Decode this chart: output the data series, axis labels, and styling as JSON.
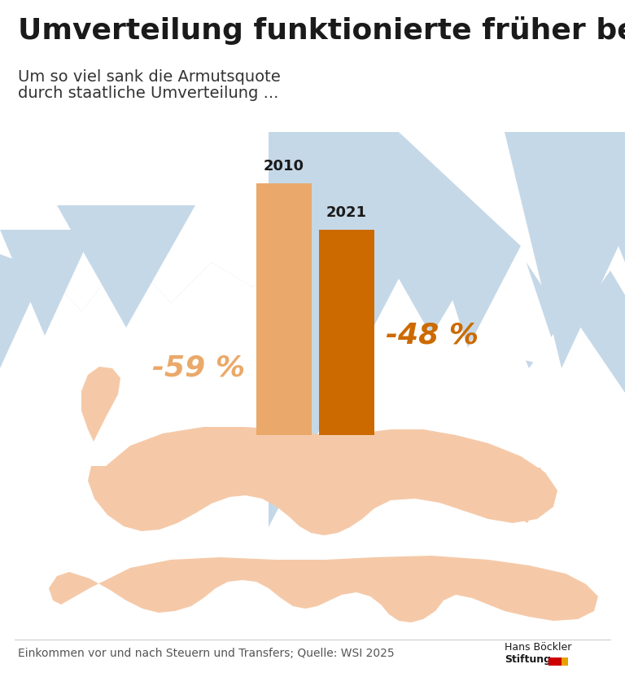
{
  "title": "Umverteilung funktionierte früher besser",
  "subtitle_line1": "Um so viel sank die Armutsquote",
  "subtitle_line2": "durch staatliche Umverteilung ...",
  "bar_labels": [
    "2010",
    "2021"
  ],
  "bar_values": [
    59,
    48
  ],
  "bar_label_texts": [
    "-59 %",
    "-48 %"
  ],
  "bar_color_2010": "#EAA96A",
  "bar_color_2021": "#CC6A00",
  "label_color_2010": "#EAA96A",
  "label_color_2021": "#CC6A00",
  "mountain_color": "#C5D8E8",
  "hand_color": "#F5C9A8",
  "background_color": "#FFFFFF",
  "footer_text": "Einkommen vor und nach Steuern und Transfers; Quelle: WSI 2025",
  "logo_line1": "Hans Böckler",
  "logo_line2": "Stiftung",
  "title_fontsize": 26,
  "subtitle_fontsize": 14,
  "bar_year_fontsize": 13,
  "bar_label_fontsize": 26,
  "footer_fontsize": 10,
  "logo_fontsize": 9
}
